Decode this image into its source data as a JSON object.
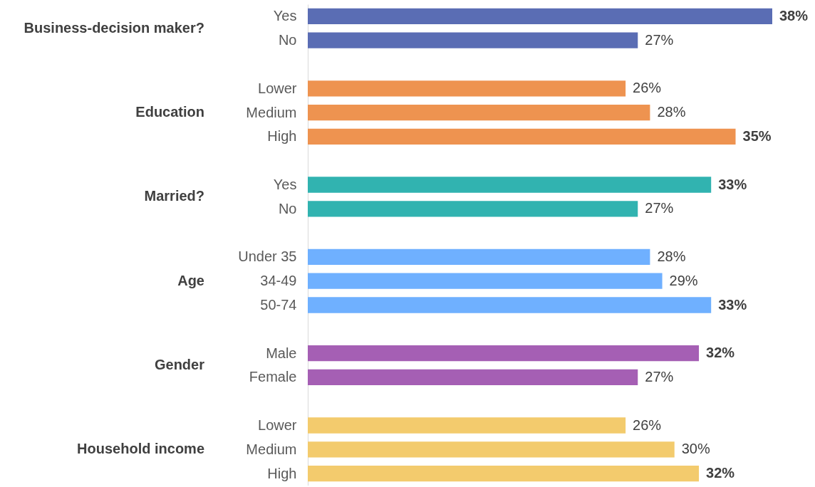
{
  "chart_data": {
    "type": "bar",
    "orientation": "horizontal",
    "categories": [
      "Yes",
      "No",
      null,
      "Lower",
      "Medium",
      "High",
      null,
      "Yes",
      "No",
      null,
      "Under 35",
      "34-49",
      "50-74",
      null,
      "Male",
      "Female",
      null,
      "Lower",
      "Medium",
      "High"
    ],
    "series": [
      {
        "color": "#5a6db4",
        "values": [
          38,
          27,
          null,
          null,
          null,
          null,
          null,
          null,
          null,
          null,
          null,
          null,
          null,
          null,
          null,
          null,
          null,
          null,
          null,
          null
        ],
        "value_labels": [
          "38%",
          "27%",
          null,
          null,
          null,
          null,
          null,
          null,
          null,
          null,
          null,
          null,
          null,
          null,
          null,
          null,
          null,
          null,
          null,
          null
        ]
      },
      {
        "color": "#ee9350",
        "values": [
          null,
          null,
          null,
          26,
          28,
          35,
          null,
          null,
          null,
          null,
          null,
          null,
          null,
          null,
          null,
          null,
          null,
          null,
          null,
          null
        ],
        "value_labels": [
          null,
          null,
          null,
          "26%",
          "28%",
          "35%",
          null,
          null,
          null,
          null,
          null,
          null,
          null,
          null,
          null,
          null,
          null,
          null,
          null,
          null
        ]
      },
      {
        "color": "#31b3b0",
        "values": [
          null,
          null,
          null,
          null,
          null,
          null,
          null,
          33,
          27,
          null,
          null,
          null,
          null,
          null,
          null,
          null,
          null,
          null,
          null,
          null
        ],
        "value_labels": [
          null,
          null,
          null,
          null,
          null,
          null,
          null,
          "33%",
          "27%",
          null,
          null,
          null,
          null,
          null,
          null,
          null,
          null,
          null,
          null,
          null
        ]
      },
      {
        "color": "#6fb0ff",
        "values": [
          null,
          null,
          null,
          null,
          null,
          null,
          null,
          null,
          null,
          null,
          28,
          29,
          33,
          null,
          null,
          null,
          null,
          null,
          null,
          null
        ],
        "value_labels": [
          null,
          null,
          null,
          null,
          null,
          null,
          null,
          null,
          null,
          null,
          "28%",
          "29%",
          "33%",
          null,
          null,
          null,
          null,
          null,
          null,
          null
        ]
      },
      {
        "color": "#a55fb4",
        "values": [
          null,
          null,
          null,
          null,
          null,
          null,
          null,
          null,
          null,
          null,
          null,
          null,
          null,
          null,
          32,
          27,
          null,
          null,
          null,
          null
        ],
        "value_labels": [
          null,
          null,
          null,
          null,
          null,
          null,
          null,
          null,
          null,
          null,
          null,
          null,
          null,
          null,
          "32%",
          "27%",
          null,
          null,
          null,
          null
        ]
      },
      {
        "color": "#f3cb6d",
        "values": [
          null,
          null,
          null,
          null,
          null,
          null,
          null,
          null,
          null,
          null,
          null,
          null,
          null,
          null,
          null,
          null,
          null,
          26,
          30,
          32
        ],
        "value_labels": [
          null,
          null,
          null,
          null,
          null,
          null,
          null,
          null,
          null,
          null,
          null,
          null,
          null,
          null,
          null,
          null,
          null,
          "26%",
          "30%",
          "32%"
        ]
      }
    ],
    "annotations": [
      "Business-decision maker?",
      "Education",
      "Married?",
      "Age",
      "Gender",
      "Household income"
    ],
    "legend": false,
    "grid": false
  }
}
